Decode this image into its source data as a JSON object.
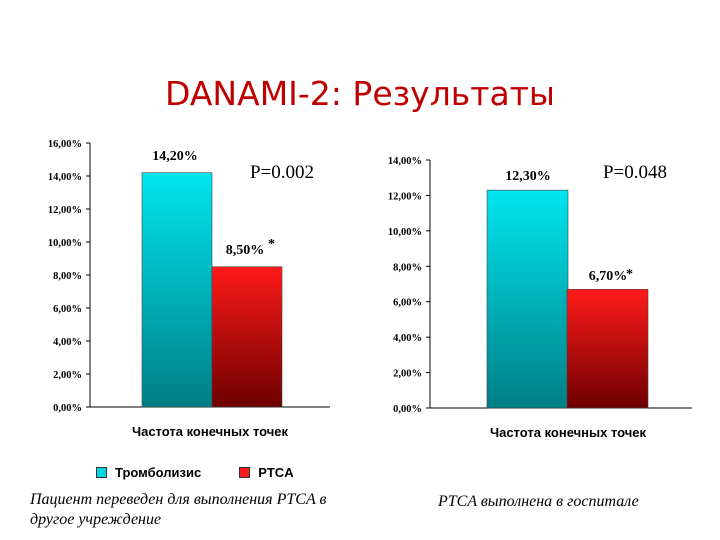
{
  "title": "DANAMI-2: Результаты",
  "chart_data": [
    {
      "type": "bar",
      "categories": [
        "Тромболизис",
        "PTCA"
      ],
      "series": [
        {
          "values": [
            14.2,
            8.5
          ]
        }
      ],
      "value_labels": [
        "14,20%",
        "8,50%"
      ],
      "asterisk": "*",
      "p_value": "P=0.002",
      "xlabel": "Частота конечных точек",
      "ylim": [
        0,
        16
      ],
      "y_ticks": [
        0,
        2,
        4,
        6,
        8,
        10,
        12,
        14,
        16
      ],
      "y_tick_labels": [
        "0,00%",
        "2,00%",
        "4,00%",
        "6,00%",
        "8,00%",
        "10,00%",
        "12,00%",
        "14,00%",
        "16,00%"
      ],
      "colors": [
        "#00e5f0",
        "#ff1a1a"
      ]
    },
    {
      "type": "bar",
      "categories": [
        "Тромболизис",
        "PTCA"
      ],
      "series": [
        {
          "values": [
            12.3,
            6.7
          ]
        }
      ],
      "value_labels": [
        "12,30%",
        "6,70%"
      ],
      "asterisk": "*",
      "p_value": "P=0.048",
      "xlabel": "Частота конечных точек",
      "ylim": [
        0,
        14
      ],
      "y_ticks": [
        0,
        2,
        4,
        6,
        8,
        10,
        12,
        14
      ],
      "y_tick_labels": [
        "0,00%",
        "2,00%",
        "4,00%",
        "6,00%",
        "8,00%",
        "10,00%",
        "12,00%",
        "14,00%"
      ],
      "colors": [
        "#00e5f0",
        "#ff1a1a"
      ]
    }
  ],
  "legend": {
    "items": [
      {
        "label": "Тромболизис",
        "color": "#00d4e0"
      },
      {
        "label": "PTCA",
        "color": "#ff1a1a"
      }
    ]
  },
  "captions": {
    "left": "Пациент переведен для выполнения PTCA в другое учреждение",
    "right": "PTCA выполнена в госпитале"
  }
}
